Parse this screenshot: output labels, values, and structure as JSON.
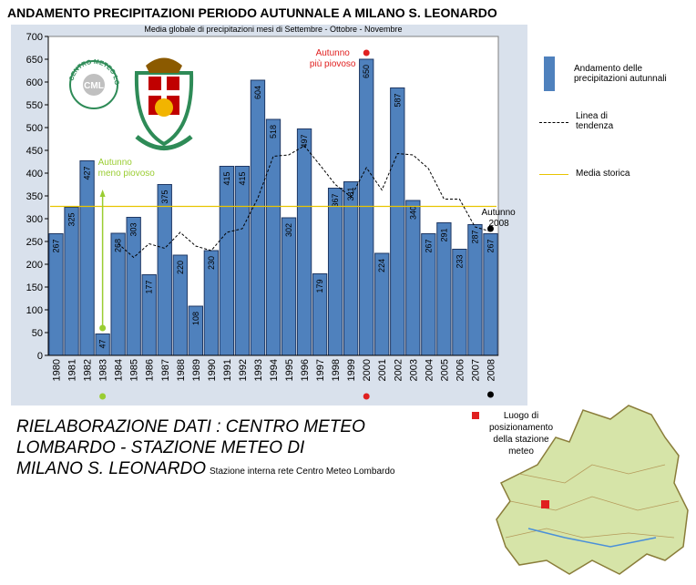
{
  "page_title": "ANDAMENTO PRECIPITAZIONI PERIODO AUTUNNALE A MILANO S. LEONARDO",
  "chart_data": {
    "type": "bar",
    "subtitle": "Media globale di precipitazioni mesi di Settembre - Ottobre - Novembre",
    "categories": [
      "1980",
      "1981",
      "1982",
      "1983",
      "1984",
      "1985",
      "1986",
      "1987",
      "1988",
      "1989",
      "1990",
      "1991",
      "1992",
      "1993",
      "1994",
      "1995",
      "1996",
      "1997",
      "1998",
      "1999",
      "2000",
      "2001",
      "2002",
      "2003",
      "2004",
      "2005",
      "2006",
      "2007",
      "2008"
    ],
    "series": [
      {
        "name": "Andamento delle precipitazioni autunnali",
        "values": [
          267,
          325,
          427,
          47,
          268,
          303,
          177,
          375,
          220,
          108,
          230,
          415,
          415,
          604,
          518,
          302,
          497,
          179,
          367,
          381,
          650,
          224,
          587,
          340,
          267,
          291,
          233,
          287,
          267
        ]
      },
      {
        "name": "Linea di tendenza",
        "values": [
          null,
          null,
          null,
          null,
          245,
          215,
          245,
          235,
          270,
          240,
          230,
          270,
          278,
          345,
          437,
          440,
          460,
          418,
          375,
          348,
          412,
          363,
          443,
          440,
          410,
          343,
          343,
          282,
          272
        ]
      },
      {
        "name": "Media storica",
        "value": 327
      }
    ],
    "ylim": [
      0,
      700
    ],
    "yticks": [
      0,
      50,
      100,
      150,
      200,
      250,
      300,
      350,
      400,
      450,
      500,
      550,
      600,
      650,
      700
    ],
    "grid": false,
    "legend_position": "right",
    "annotations": {
      "wettest": "Autunno più piovoso",
      "driest": "Autunno meno piovoso",
      "latest_line1": "Autunno",
      "latest_line2": "2008"
    },
    "colors": {
      "bar": "#4f81bd",
      "bar_edge": "#1f3864",
      "trend": "#000000",
      "mean": "#e8c400",
      "wettest_marker": "#e02020",
      "driest_marker": "#9acd32",
      "latest_marker": "#000000",
      "panel": "#d9e1ec",
      "plot": "#ffffff"
    }
  },
  "logos": {
    "cml_text": "CENTRO METEO LOMBARDO",
    "cml_mark": "CML"
  },
  "legend": {
    "bars": "Andamento delle precipitazioni autunnali",
    "trend": "Linea di tendenza",
    "mean": "Media storica"
  },
  "credit": {
    "line1": "RIELABORAZIONE DATI : CENTRO METEO",
    "line2": "LOMBARDO - STAZIONE METEO DI",
    "line3": "MILANO S. LEONARDO",
    "note": "Stazione interna rete Centro Meteo Lombardo"
  },
  "map": {
    "label": "Luogo di posizionamento della stazione meteo"
  }
}
